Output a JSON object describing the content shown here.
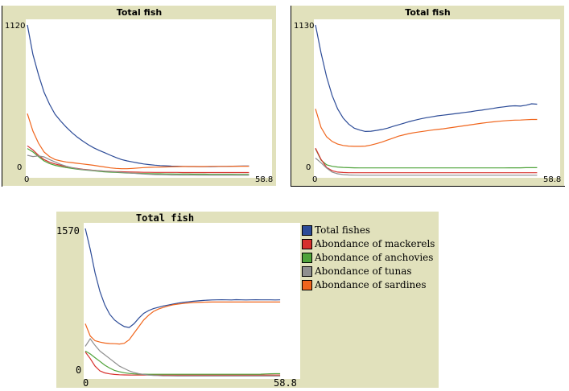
{
  "colors": {
    "panel_bg": "#e1e1bc",
    "total": "#2c4b97",
    "mackerels": "#d7302c",
    "anchovies": "#4fa33a",
    "tunas": "#8f8f8f",
    "sardines": "#f0651c"
  },
  "chart_data": [
    {
      "type": "line",
      "title": "Total fish",
      "xlim": [
        0,
        58.8
      ],
      "ylim": [
        0,
        1120
      ],
      "x_tick_labels": [
        "0",
        "58.8"
      ],
      "y_tick_labels": [
        "0",
        "1120"
      ],
      "x": [
        0,
        1.47,
        2.94,
        4.41,
        5.88,
        7.35,
        8.82,
        10.29,
        11.76,
        13.23,
        14.7,
        16.17,
        17.64,
        19.11,
        20.58,
        22.05,
        23.52,
        24.99,
        26.46,
        27.93,
        29.4,
        30.87,
        32.34,
        33.81,
        35.28,
        36.75,
        38.22,
        39.69,
        41.16,
        42.63,
        44.1,
        45.57,
        47.04,
        48.51,
        49.98,
        51.45,
        52.92,
        54.39,
        55.86,
        57.33,
        58.8
      ],
      "series": [
        {
          "color_key": "total",
          "values": [
            1120,
            900,
            750,
            620,
            530,
            455,
            405,
            360,
            320,
            285,
            255,
            228,
            205,
            185,
            168,
            150,
            133,
            118,
            108,
            100,
            92,
            85,
            80,
            76,
            73,
            71,
            69,
            68,
            67,
            66,
            66,
            65,
            65,
            65,
            66,
            67,
            67,
            68,
            69,
            70,
            70
          ]
        },
        {
          "color_key": "sardines",
          "values": [
            460,
            330,
            240,
            175,
            140,
            118,
            108,
            100,
            95,
            90,
            85,
            80,
            75,
            68,
            62,
            56,
            52,
            50,
            50,
            52,
            55,
            58,
            60,
            61,
            62,
            63,
            64,
            65,
            66,
            66,
            66,
            66,
            66,
            67,
            67,
            67,
            67,
            68,
            68,
            68,
            68
          ]
        },
        {
          "color_key": "mackerels",
          "values": [
            220,
            190,
            150,
            118,
            98,
            85,
            75,
            66,
            58,
            52,
            46,
            42,
            38,
            35,
            32,
            30,
            28,
            27,
            26,
            25,
            24,
            23,
            23,
            22,
            22,
            22,
            22,
            22,
            21,
            21,
            21,
            21,
            21,
            21,
            21,
            21,
            21,
            21,
            21,
            21,
            21
          ]
        },
        {
          "color_key": "anchovies",
          "values": [
            200,
            175,
            140,
            108,
            88,
            75,
            66,
            58,
            52,
            46,
            42,
            38,
            34,
            30,
            26,
            24,
            22,
            20,
            18,
            16,
            15,
            14,
            13,
            12,
            12,
            11,
            11,
            10,
            10,
            10,
            9,
            9,
            9,
            8,
            8,
            8,
            8,
            8,
            7,
            7,
            7
          ]
        },
        {
          "color_key": "tunas",
          "values": [
            150,
            140,
            145,
            138,
            118,
            100,
            82,
            68,
            58,
            50,
            44,
            40,
            37,
            34,
            31,
            28,
            26,
            23,
            20,
            16,
            13,
            10,
            8,
            6,
            5,
            4,
            3,
            3,
            2,
            2,
            2,
            1,
            1,
            1,
            1,
            1,
            1,
            1,
            1,
            1,
            1
          ]
        }
      ]
    },
    {
      "type": "line",
      "title": "Total fish",
      "xlim": [
        0,
        58.8
      ],
      "ylim": [
        0,
        1130
      ],
      "x_tick_labels": [
        "0",
        "58.8"
      ],
      "y_tick_labels": [
        "0",
        "1130"
      ],
      "x": [
        0,
        1.47,
        2.94,
        4.41,
        5.88,
        7.35,
        8.82,
        10.29,
        11.76,
        13.23,
        14.7,
        16.17,
        17.64,
        19.11,
        20.58,
        22.05,
        23.52,
        24.99,
        26.46,
        27.93,
        29.4,
        30.87,
        32.34,
        33.81,
        35.28,
        36.75,
        38.22,
        39.69,
        41.16,
        42.63,
        44.1,
        45.57,
        47.04,
        48.51,
        49.98,
        51.45,
        52.92,
        54.39,
        55.86,
        57.33,
        58.8
      ],
      "series": [
        {
          "color_key": "total",
          "values": [
            1130,
            920,
            740,
            600,
            500,
            430,
            385,
            355,
            340,
            330,
            332,
            338,
            345,
            355,
            368,
            380,
            392,
            405,
            415,
            425,
            433,
            440,
            447,
            452,
            457,
            462,
            468,
            473,
            478,
            485,
            490,
            497,
            503,
            510,
            515,
            520,
            523,
            520,
            527,
            538,
            535
          ]
        },
        {
          "color_key": "sardines",
          "values": [
            500,
            360,
            290,
            255,
            235,
            225,
            220,
            218,
            218,
            220,
            228,
            238,
            250,
            265,
            280,
            295,
            305,
            315,
            322,
            328,
            334,
            340,
            345,
            350,
            356,
            362,
            368,
            374,
            380,
            386,
            392,
            397,
            402,
            406,
            410,
            413,
            415,
            416,
            418,
            420,
            420
          ]
        },
        {
          "color_key": "anchovies",
          "values": [
            200,
            115,
            80,
            68,
            63,
            60,
            58,
            57,
            56,
            56,
            56,
            56,
            56,
            56,
            56,
            56,
            56,
            56,
            56,
            56,
            56,
            56,
            56,
            56,
            56,
            56,
            56,
            56,
            56,
            56,
            56,
            56,
            56,
            56,
            56,
            57,
            57,
            57,
            58,
            58,
            58
          ]
        },
        {
          "color_key": "mackerels",
          "values": [
            205,
            120,
            60,
            35,
            25,
            22,
            20,
            20,
            20,
            20,
            20,
            20,
            20,
            20,
            20,
            20,
            20,
            20,
            20,
            20,
            20,
            20,
            20,
            20,
            20,
            20,
            20,
            20,
            20,
            20,
            20,
            20,
            20,
            20,
            20,
            20,
            20,
            20,
            20,
            20,
            20
          ]
        },
        {
          "color_key": "tunas",
          "values": [
            130,
            95,
            55,
            25,
            12,
            6,
            3,
            2,
            1,
            1,
            1,
            1,
            1,
            1,
            1,
            1,
            1,
            1,
            1,
            1,
            1,
            1,
            1,
            1,
            1,
            1,
            1,
            1,
            1,
            1,
            1,
            1,
            1,
            1,
            1,
            1,
            1,
            1,
            1,
            1,
            1
          ]
        }
      ]
    },
    {
      "type": "line",
      "title": "Total fish",
      "xlim": [
        0,
        58.8
      ],
      "ylim": [
        0,
        1570
      ],
      "x_tick_labels": [
        "0",
        "58.8"
      ],
      "y_tick_labels": [
        "0",
        "1570"
      ],
      "legend": "right",
      "x": [
        0,
        1.47,
        2.94,
        4.41,
        5.88,
        7.35,
        8.82,
        10.29,
        11.76,
        13.23,
        14.7,
        16.17,
        17.64,
        19.11,
        20.58,
        22.05,
        23.52,
        24.99,
        26.46,
        27.93,
        29.4,
        30.87,
        32.34,
        33.81,
        35.28,
        36.75,
        38.22,
        39.69,
        41.16,
        42.63,
        44.1,
        45.57,
        47.04,
        48.51,
        49.98,
        51.45,
        52.92,
        54.39,
        55.86,
        57.33,
        58.8
      ],
      "series": [
        {
          "name": "Total fishes",
          "color_key": "total",
          "values": [
            1570,
            1350,
            1100,
            900,
            760,
            660,
            600,
            560,
            530,
            520,
            560,
            620,
            670,
            700,
            720,
            735,
            748,
            758,
            768,
            778,
            786,
            792,
            798,
            802,
            806,
            810,
            812,
            813,
            814,
            813,
            812,
            815,
            813,
            812,
            813,
            814,
            813,
            813,
            813,
            812,
            813
          ]
        },
        {
          "name": "Abondance of mackerels",
          "color_key": "mackerels",
          "values": [
            260,
            190,
            110,
            60,
            38,
            28,
            22,
            19,
            17,
            16,
            15,
            15,
            15,
            15,
            15,
            15,
            15,
            15,
            15,
            15,
            15,
            15,
            15,
            15,
            15,
            15,
            15,
            15,
            15,
            15,
            15,
            15,
            15,
            15,
            15,
            15,
            15,
            15,
            15,
            15,
            15
          ]
        },
        {
          "name": "Abondance of anchovies",
          "color_key": "anchovies",
          "values": [
            270,
            240,
            200,
            160,
            120,
            90,
            65,
            50,
            40,
            32,
            28,
            26,
            25,
            24,
            24,
            24,
            24,
            24,
            24,
            24,
            24,
            24,
            24,
            24,
            24,
            24,
            24,
            24,
            24,
            24,
            24,
            24,
            24,
            24,
            24,
            24,
            25,
            27,
            29,
            30,
            30
          ]
        },
        {
          "name": "Abondance of tunas",
          "color_key": "tunas",
          "values": [
            320,
            400,
            330,
            270,
            230,
            190,
            150,
            110,
            85,
            60,
            42,
            30,
            22,
            16,
            12,
            10,
            8,
            7,
            6,
            5,
            5,
            5,
            5,
            5,
            5,
            5,
            5,
            5,
            5,
            5,
            5,
            5,
            5,
            5,
            5,
            5,
            5,
            5,
            5,
            5,
            5
          ]
        },
        {
          "name": "Abondance of sardines",
          "color_key": "sardines",
          "values": [
            560,
            430,
            380,
            365,
            355,
            350,
            348,
            345,
            352,
            390,
            460,
            530,
            600,
            650,
            690,
            715,
            732,
            748,
            760,
            768,
            774,
            780,
            784,
            786,
            788,
            789,
            790,
            790,
            790,
            790,
            790,
            790,
            790,
            790,
            790,
            790,
            790,
            790,
            790,
            790,
            790
          ]
        }
      ]
    }
  ]
}
